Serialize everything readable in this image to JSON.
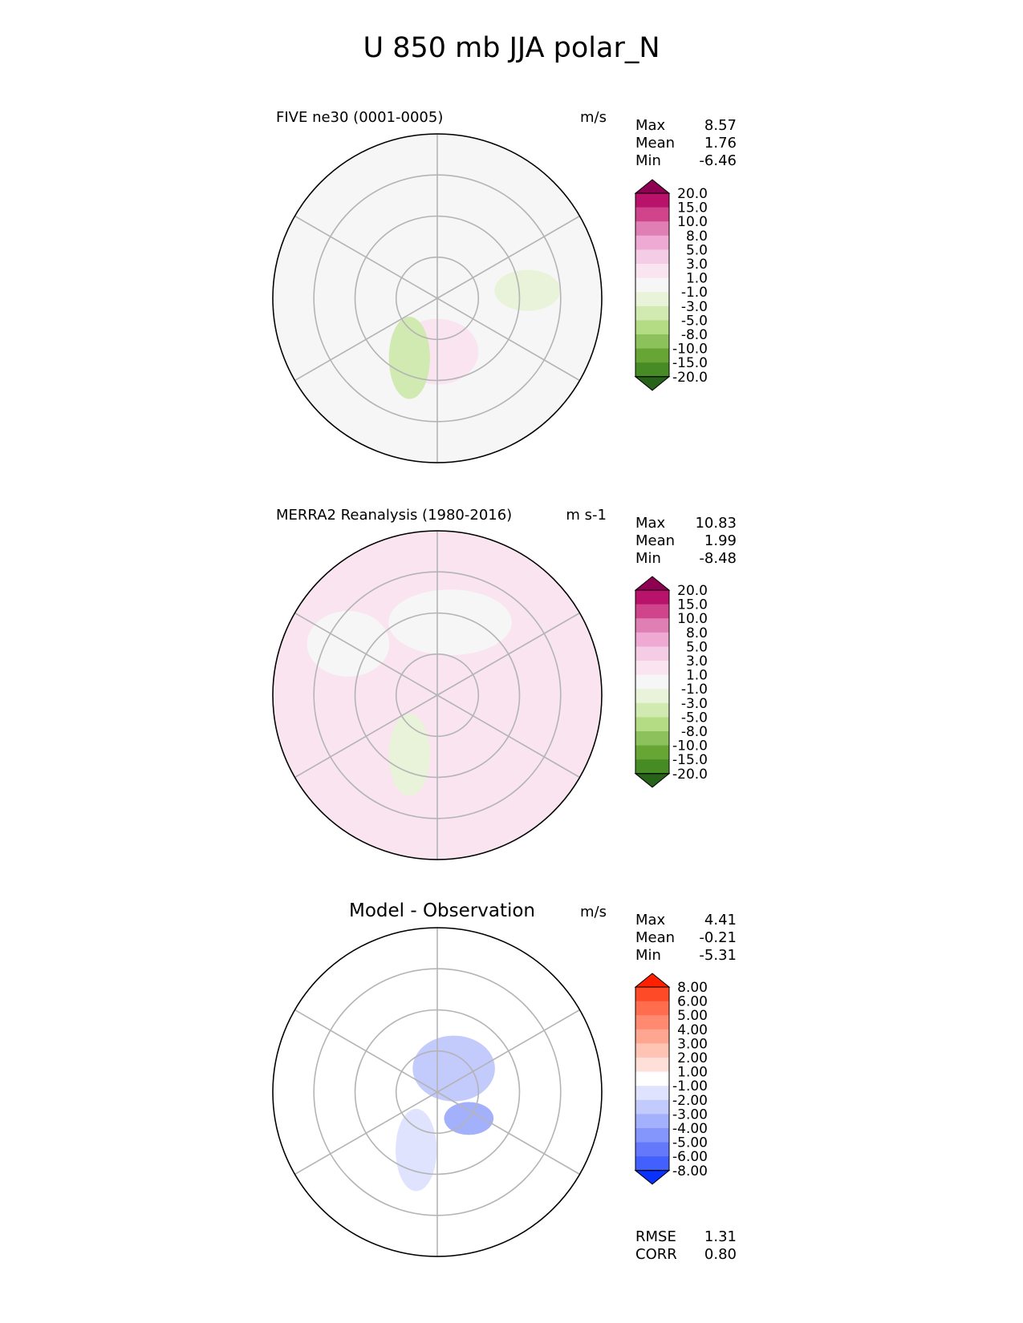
{
  "title": "U 850 mb JJA polar_N",
  "chart_data": [
    {
      "type": "heatmap",
      "projection": "north polar stereographic",
      "title": "FIVE ne30 (0001-0005)",
      "units": "m/s",
      "stats": [
        {
          "label": "Max",
          "value": "8.57"
        },
        {
          "label": "Mean",
          "value": "1.76"
        },
        {
          "label": "Min",
          "value": "-6.46"
        }
      ],
      "colorbar": {
        "levels": [
          "20.0",
          "15.0",
          "10.0",
          "8.0",
          "5.0",
          "3.0",
          "1.0",
          "-1.0",
          "-3.0",
          "-5.0",
          "-8.0",
          "-10.0",
          "-15.0",
          "-20.0"
        ],
        "colors": [
          "#8e0152",
          "#b8126a",
          "#d0448c",
          "#e07fb4",
          "#eeaad2",
          "#f5cce5",
          "#f9e4ef",
          "#f6f6f6",
          "#e8f3d9",
          "#d1eab1",
          "#b4dc85",
          "#8cc15c",
          "#67a635",
          "#468b24",
          "#276419"
        ]
      },
      "field": {
        "base": "#f6f6f6",
        "regions": [
          {
            "lat": 77,
            "lon": 0,
            "rx": 10,
            "ry": 8,
            "v": "#f9e4ef"
          },
          {
            "lat": 68,
            "lon": 95,
            "rx": 8,
            "ry": 5,
            "v": "#e8f3d9"
          },
          {
            "lat": 74,
            "lon": -25,
            "rx": 5,
            "ry": 10,
            "v": "#d1eab1"
          }
        ]
      }
    },
    {
      "type": "heatmap",
      "projection": "north polar stereographic",
      "title": "MERRA2 Reanalysis (1980-2016)",
      "units": "m s-1",
      "stats": [
        {
          "label": "Max",
          "value": "10.83"
        },
        {
          "label": "Mean",
          "value": "1.99"
        },
        {
          "label": "Min",
          "value": "-8.48"
        }
      ],
      "colorbar": {
        "levels": [
          "20.0",
          "15.0",
          "10.0",
          "8.0",
          "5.0",
          "3.0",
          "1.0",
          "-1.0",
          "-3.0",
          "-5.0",
          "-8.0",
          "-10.0",
          "-15.0",
          "-20.0"
        ],
        "colors": [
          "#8e0152",
          "#b8126a",
          "#d0448c",
          "#e07fb4",
          "#eeaad2",
          "#f5cce5",
          "#f9e4ef",
          "#f6f6f6",
          "#e8f3d9",
          "#d1eab1",
          "#b4dc85",
          "#8cc15c",
          "#67a635",
          "#468b24",
          "#276419"
        ]
      },
      "field": {
        "base": "#f9e4ef",
        "regions": [
          {
            "lat": 72,
            "lon": 170,
            "rx": 15,
            "ry": 8,
            "v": "#f6f6f6"
          },
          {
            "lat": 65,
            "lon": -120,
            "rx": 10,
            "ry": 8,
            "v": "#f6f6f6"
          },
          {
            "lat": 74,
            "lon": -25,
            "rx": 5,
            "ry": 10,
            "v": "#e8f3d9"
          }
        ]
      }
    },
    {
      "type": "heatmap",
      "projection": "north polar stereographic",
      "title": "Model - Observation",
      "units": "m/s",
      "stats": [
        {
          "label": "Max",
          "value": "4.41"
        },
        {
          "label": "Mean",
          "value": "-0.21"
        },
        {
          "label": "Min",
          "value": "-5.31"
        }
      ],
      "metrics": [
        {
          "label": "RMSE",
          "value": "1.31"
        },
        {
          "label": "CORR",
          "value": "0.80"
        }
      ],
      "colorbar": {
        "levels": [
          "8.00",
          "6.00",
          "5.00",
          "4.00",
          "3.00",
          "2.00",
          "1.00",
          "-1.00",
          "-2.00",
          "-3.00",
          "-4.00",
          "-5.00",
          "-6.00",
          "-8.00"
        ],
        "colors": [
          "#ff2000",
          "#ff4a28",
          "#ff6c4e",
          "#ff8a70",
          "#ffa690",
          "#ffc4b4",
          "#ffe0d8",
          "#ffffff",
          "#dfe3fd",
          "#c3cafc",
          "#a3b0fc",
          "#8496fc",
          "#6478fc",
          "#4160fd",
          "#0a32ff"
        ]
      },
      "field": {
        "base": "#ffffff",
        "regions": [
          {
            "lat": 83,
            "lon": 145,
            "rx": 10,
            "ry": 8,
            "v": "#c3cafc"
          },
          {
            "lat": 80,
            "lon": 50,
            "rx": 6,
            "ry": 4,
            "v": "#a3b0fc"
          },
          {
            "lat": 75,
            "lon": -20,
            "rx": 5,
            "ry": 10,
            "v": "#dfe3fd"
          }
        ]
      }
    }
  ]
}
